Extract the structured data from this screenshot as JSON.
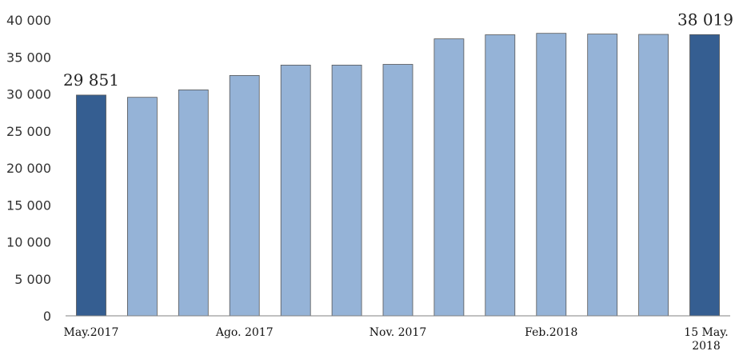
{
  "chart_data": {
    "type": "bar",
    "title": "",
    "xlabel": "",
    "ylabel": "",
    "ylim": [
      0,
      40000
    ],
    "yticks": [
      {
        "value": 0,
        "label": "0"
      },
      {
        "value": 5000,
        "label": "5 000"
      },
      {
        "value": 10000,
        "label": "10 000"
      },
      {
        "value": 15000,
        "label": "15 000"
      },
      {
        "value": 20000,
        "label": "20 000"
      },
      {
        "value": 25000,
        "label": "25 000"
      },
      {
        "value": 30000,
        "label": "30 000"
      },
      {
        "value": 35000,
        "label": "35 000"
      },
      {
        "value": 40000,
        "label": "40 000"
      }
    ],
    "grid": false,
    "legend": "none",
    "colors": {
      "highlight": "#355e91",
      "normal": "#95b3d7",
      "bar_edge": "#555555",
      "axis": "#808080"
    },
    "values": [
      29851,
      29550,
      30550,
      32500,
      33900,
      33900,
      34000,
      37450,
      38000,
      38200,
      38100,
      38050,
      38019
    ],
    "highlight": [
      true,
      false,
      false,
      false,
      false,
      false,
      false,
      false,
      false,
      false,
      false,
      false,
      true
    ],
    "xtick_labels": [
      {
        "index": 0,
        "lines": [
          "May.2017"
        ]
      },
      {
        "index": 3,
        "lines": [
          "Ago. 2017"
        ]
      },
      {
        "index": 6,
        "lines": [
          "Nov. 2017"
        ]
      },
      {
        "index": 9,
        "lines": [
          "Feb.2018"
        ]
      },
      {
        "index": 12,
        "lines": [
          "15 May.",
          "2018"
        ]
      }
    ],
    "data_labels": [
      {
        "index": 0,
        "text": "29 851"
      },
      {
        "index": 12,
        "text": "38 019"
      }
    ]
  }
}
